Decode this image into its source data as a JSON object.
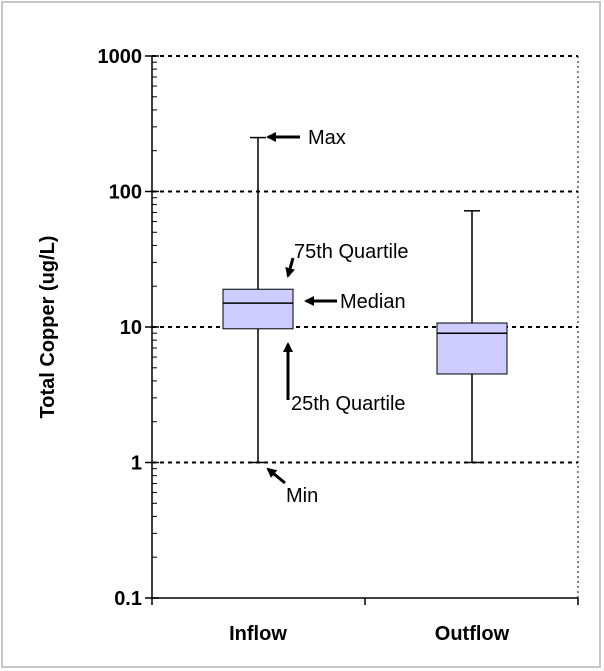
{
  "chart_data": {
    "type": "box",
    "ylabel": "Total Copper (ug/L)",
    "y_scale": "log",
    "ylim": [
      0.1,
      1000
    ],
    "y_ticks": [
      {
        "value": 0.1,
        "label": "0.1"
      },
      {
        "value": 1,
        "label": "1"
      },
      {
        "value": 10,
        "label": "10"
      },
      {
        "value": 100,
        "label": "100"
      },
      {
        "value": 1000,
        "label": "1000"
      }
    ],
    "grid": "horizontal dotted at 1, 10, 100, 1000",
    "categories": [
      "Inflow",
      "Outflow"
    ],
    "boxes": [
      {
        "category": "Inflow",
        "min": 1,
        "q1": 9.7,
        "median": 15,
        "q3": 19,
        "max": 250
      },
      {
        "category": "Outflow",
        "min": 1,
        "q1": 4.5,
        "median": 9,
        "q3": 10.7,
        "max": 72
      }
    ],
    "box_color": "#ccccff",
    "annotations": [
      {
        "text": "Max",
        "target": "Inflow.max"
      },
      {
        "text": "75th Quartile",
        "target": "Inflow.q3"
      },
      {
        "text": "Median",
        "target": "Inflow.median"
      },
      {
        "text": "25th Quartile",
        "target": "Inflow.q1"
      },
      {
        "text": "Min",
        "target": "Inflow.min"
      }
    ]
  }
}
